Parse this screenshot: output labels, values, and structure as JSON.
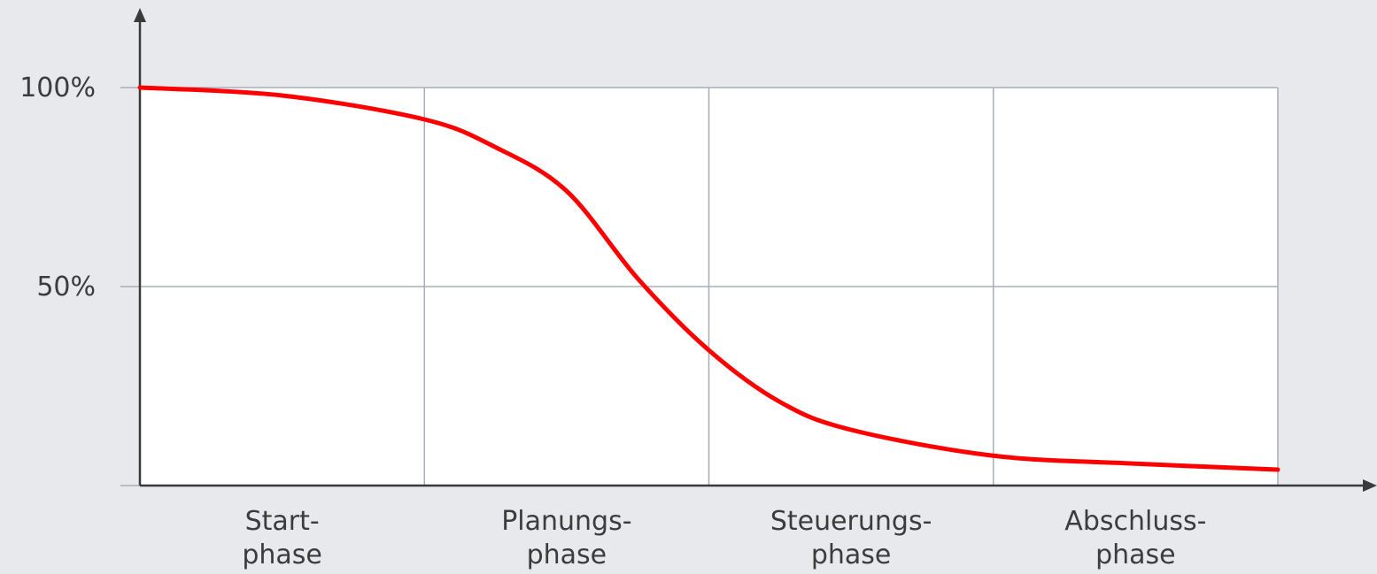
{
  "chart_data": {
    "type": "line",
    "title": "",
    "xlabel": "",
    "ylabel": "",
    "categories": [
      [
        "Start-",
        "phase"
      ],
      [
        "Planungs-",
        "phase"
      ],
      [
        "Steuerungs-",
        "phase"
      ],
      [
        "Abschluss-",
        "phase"
      ]
    ],
    "y_ticks": [
      {
        "value": 100,
        "label": "100%"
      },
      {
        "value": 50,
        "label": "50%"
      },
      {
        "value": 0,
        "label": ""
      }
    ],
    "ylim": [
      0,
      100
    ],
    "xlim": [
      0,
      4
    ],
    "grid": true,
    "series": [
      {
        "color": "#ff0000",
        "points": [
          {
            "x": 0.0,
            "y": 100
          },
          {
            "x": 0.5,
            "y": 98
          },
          {
            "x": 1.0,
            "y": 92
          },
          {
            "x": 1.25,
            "y": 85
          },
          {
            "x": 1.5,
            "y": 74
          },
          {
            "x": 1.75,
            "y": 52
          },
          {
            "x": 2.0,
            "y": 34
          },
          {
            "x": 2.25,
            "y": 21
          },
          {
            "x": 2.5,
            "y": 14
          },
          {
            "x": 3.0,
            "y": 7.5
          },
          {
            "x": 3.5,
            "y": 5.5
          },
          {
            "x": 4.0,
            "y": 4
          }
        ]
      }
    ]
  }
}
